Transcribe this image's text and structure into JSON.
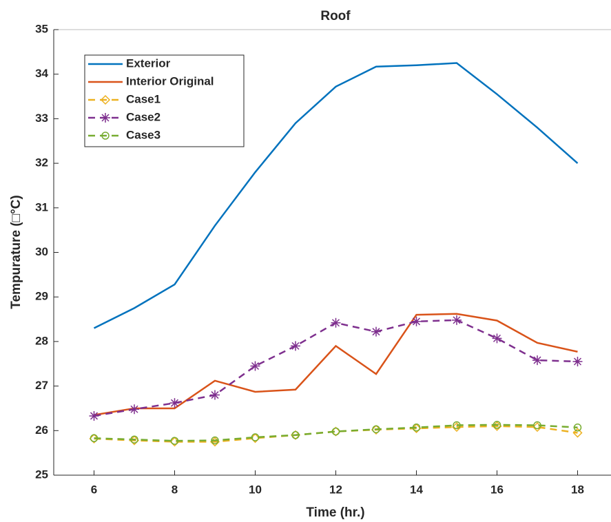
{
  "chart_data": {
    "type": "line",
    "title": "Roof",
    "x_label": "Time (hr.)",
    "y_label": "Tempurature (□°C)",
    "x": [
      6,
      7,
      8,
      9,
      10,
      11,
      12,
      13,
      14,
      15,
      16,
      17,
      18
    ],
    "xlim": [
      5,
      19
    ],
    "xticks": [
      6,
      8,
      10,
      12,
      14,
      16,
      18
    ],
    "ylim": [
      25,
      35
    ],
    "yticks": [
      25,
      26,
      27,
      28,
      29,
      30,
      31,
      32,
      33,
      34,
      35
    ],
    "legend": "upper left",
    "series": [
      {
        "name": "Exterior",
        "color": "#0072bd",
        "line_style": "solid",
        "marker": "none",
        "values": [
          28.3,
          28.75,
          29.28,
          30.6,
          31.8,
          32.9,
          33.72,
          34.17,
          34.2,
          34.25,
          33.55,
          32.8,
          32.0
        ]
      },
      {
        "name": "Interior Original",
        "color": "#d95319",
        "line_style": "solid",
        "marker": "none",
        "values": [
          26.35,
          26.5,
          26.5,
          27.12,
          26.87,
          26.92,
          27.9,
          27.27,
          28.6,
          28.62,
          28.47,
          27.97,
          27.77
        ]
      },
      {
        "name": "Case1",
        "color": "#edb120",
        "line_style": "dashed",
        "marker": "diamond",
        "values": [
          25.82,
          25.78,
          25.75,
          25.75,
          25.83,
          25.9,
          25.98,
          26.02,
          26.05,
          26.08,
          26.1,
          26.08,
          25.95
        ]
      },
      {
        "name": "Case2",
        "color": "#7e2f8e",
        "line_style": "dashed",
        "marker": "asterisk",
        "values": [
          26.33,
          26.48,
          26.62,
          26.8,
          27.45,
          27.9,
          28.42,
          28.22,
          28.45,
          28.48,
          28.07,
          27.58,
          27.55
        ]
      },
      {
        "name": "Case3",
        "color": "#77ac30",
        "line_style": "dashed",
        "marker": "circle",
        "values": [
          25.83,
          25.8,
          25.77,
          25.78,
          25.85,
          25.9,
          25.98,
          26.03,
          26.07,
          26.12,
          26.13,
          26.12,
          26.07
        ]
      }
    ]
  }
}
